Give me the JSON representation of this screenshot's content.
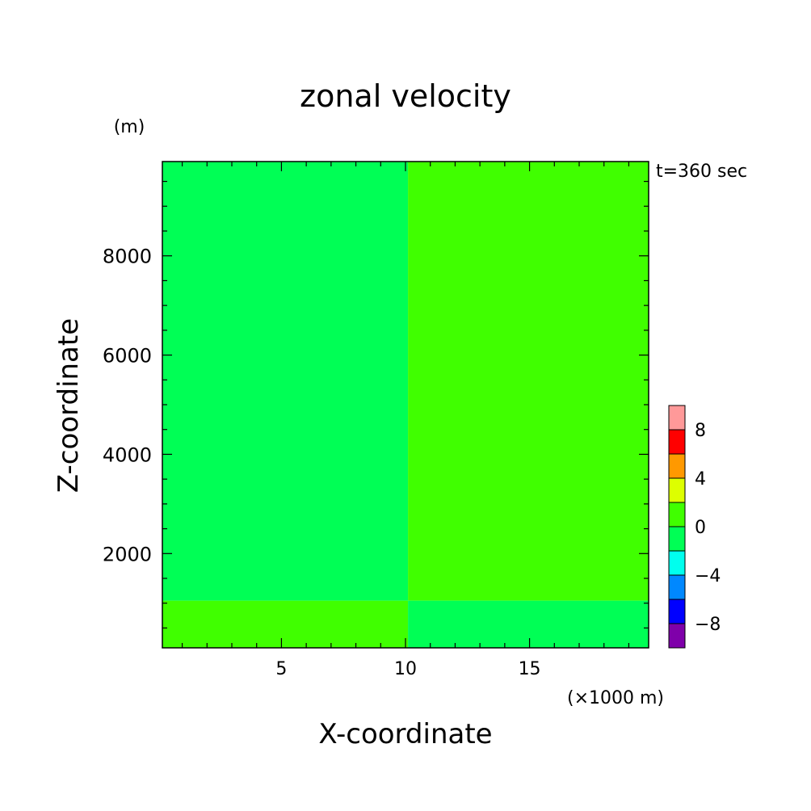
{
  "chart_data": {
    "type": "heatmap",
    "title": "zonal velocity",
    "xlabel": "X-coordinate",
    "ylabel": "Z-coordinate",
    "xunit": "(×1000 m)",
    "yunit": "(m)",
    "annotation": "t=360 sec",
    "xlim": [
      0.2,
      19.8
    ],
    "ylim": [
      100,
      9900
    ],
    "xticks": [
      5,
      10,
      15
    ],
    "xtick_labels": [
      "5",
      "10",
      "15"
    ],
    "yticks": [
      2000,
      4000,
      6000,
      8000
    ],
    "ytick_labels": [
      "2000",
      "4000",
      "6000",
      "8000"
    ],
    "regions": [
      {
        "name": "upper-left",
        "x": [
          0.2,
          10.1
        ],
        "z": [
          1050,
          9900
        ],
        "level": "-2 to 0",
        "color": "#00ff55"
      },
      {
        "name": "upper-right",
        "x": [
          10.1,
          19.8
        ],
        "z": [
          1050,
          9900
        ],
        "level": "0 to 2",
        "color": "#40ff00"
      },
      {
        "name": "lower-left",
        "x": [
          0.2,
          10.1
        ],
        "z": [
          100,
          1050
        ],
        "level": "0 to 2",
        "color": "#40ff00"
      },
      {
        "name": "lower-right",
        "x": [
          10.1,
          19.8
        ],
        "z": [
          100,
          1050
        ],
        "level": "-2 to 0",
        "color": "#00ff55"
      }
    ],
    "colorbar": {
      "levels": [
        -10,
        -8,
        -6,
        -4,
        -2,
        0,
        2,
        4,
        6,
        8,
        10
      ],
      "colors": [
        "#7f00aa",
        "#0000ff",
        "#0088ff",
        "#00ffee",
        "#00ff55",
        "#40ff00",
        "#ddff00",
        "#ff9900",
        "#ff0000",
        "#ff9999"
      ],
      "labels": [
        "-8",
        "-4",
        "0",
        "4",
        "8"
      ]
    }
  }
}
